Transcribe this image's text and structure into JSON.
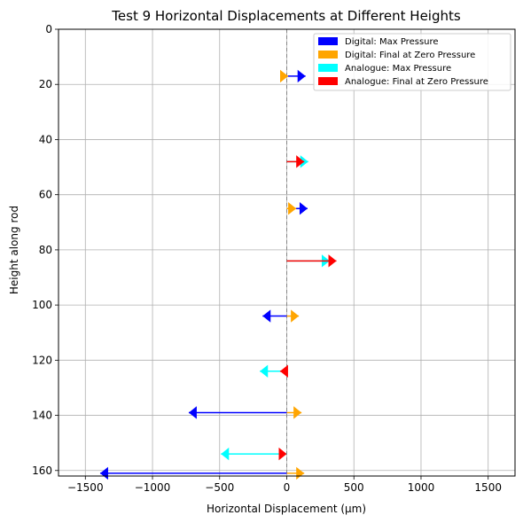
{
  "chart_data": {
    "type": "arrow-displacement",
    "title": "Test 9 Horizontal Displacements at Different Heights",
    "xlabel": "Horizontal Displacement (μm)",
    "ylabel": "Height along rod",
    "xlim": [
      -1700,
      1700
    ],
    "ylim": [
      162,
      0
    ],
    "y_inverted": true,
    "xticks": [
      -1500,
      -1000,
      -500,
      0,
      500,
      1000,
      1500
    ],
    "xtick_labels": [
      "−1500",
      "−1000",
      "−500",
      "0",
      "500",
      "1000",
      "1500"
    ],
    "yticks": [
      0,
      20,
      40,
      60,
      80,
      100,
      120,
      140,
      160
    ],
    "ytick_labels": [
      "0",
      "20",
      "40",
      "60",
      "80",
      "100",
      "120",
      "140",
      "160"
    ],
    "grid": true,
    "zero_line": "dashed",
    "legend_position": "top-right",
    "series": [
      {
        "name": "Digital: Max Pressure",
        "color": "#0000ff",
        "points": [
          {
            "y": 17,
            "dx": 140
          },
          {
            "y": 65,
            "dx": 155
          },
          {
            "y": 104,
            "dx": -180
          },
          {
            "y": 139,
            "dx": -730
          },
          {
            "y": 161,
            "dx": -1390
          }
        ]
      },
      {
        "name": "Digital: Final at Zero Pressure",
        "color": "#ffa500",
        "points": [
          {
            "y": 17,
            "dx": 10
          },
          {
            "y": 65,
            "dx": 70
          },
          {
            "y": 104,
            "dx": 90
          },
          {
            "y": 139,
            "dx": 110
          },
          {
            "y": 161,
            "dx": 130
          }
        ]
      },
      {
        "name": "Analogue: Max Pressure",
        "color": "#00ffff",
        "points": [
          {
            "y": 48,
            "dx": 160
          },
          {
            "y": 84,
            "dx": 320
          },
          {
            "y": 124,
            "dx": -200
          },
          {
            "y": 154,
            "dx": -490
          }
        ]
      },
      {
        "name": "Analogue: Final at Zero Pressure",
        "color": "#ff0000",
        "points": [
          {
            "y": 48,
            "dx": 130
          },
          {
            "y": 84,
            "dx": 370
          },
          {
            "y": 124,
            "dx": -50
          },
          {
            "y": 154,
            "dx": 0
          }
        ]
      }
    ]
  }
}
